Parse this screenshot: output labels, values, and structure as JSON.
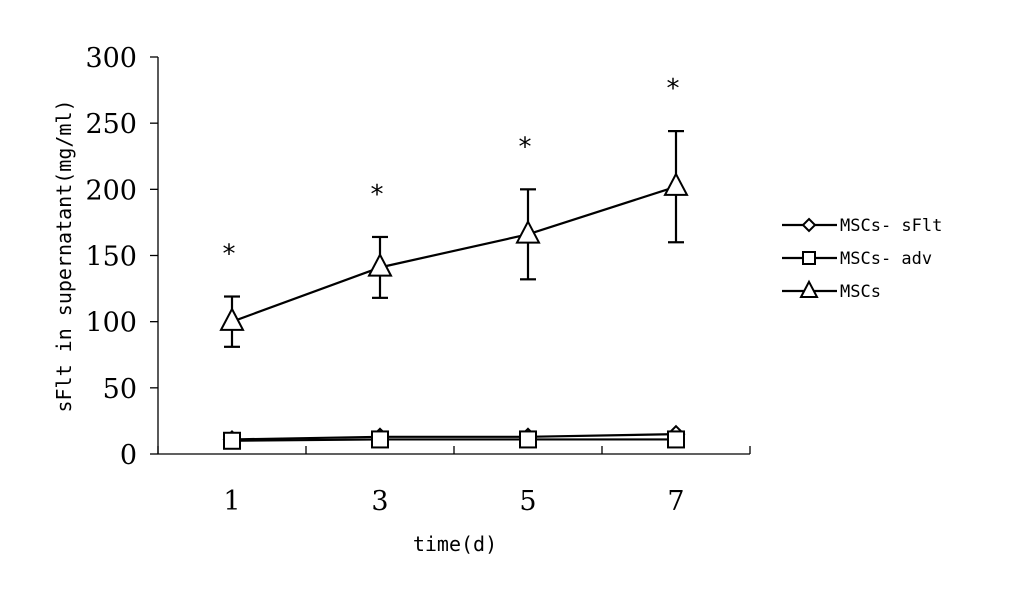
{
  "chart_data": {
    "type": "line",
    "ylabel": "sFlt in supernatant(mg/ml)",
    "xlabel": "time(d)",
    "x": [
      1,
      3,
      5,
      7
    ],
    "xticks": [
      "1",
      "3",
      "5",
      "7"
    ],
    "yticks": [
      "0",
      "50",
      "100",
      "150",
      "200",
      "250",
      "300"
    ],
    "ylim": [
      0,
      300
    ],
    "grid": false,
    "legend_position": "right",
    "series": [
      {
        "name": "MSCs- sFlt",
        "marker": "diamond",
        "values": [
          11,
          13,
          13,
          15
        ],
        "errors": [
          0,
          0,
          0,
          0
        ]
      },
      {
        "name": "MSCs- adv",
        "marker": "square",
        "values": [
          10,
          11,
          11,
          11
        ],
        "errors": [
          0,
          0,
          0,
          0
        ]
      },
      {
        "name": "MSCs",
        "marker": "triangle",
        "values": [
          100,
          141,
          166,
          202
        ],
        "errors": [
          19,
          23,
          34,
          42
        ]
      }
    ],
    "annotations": [
      "*",
      "*",
      "*",
      "*"
    ]
  }
}
